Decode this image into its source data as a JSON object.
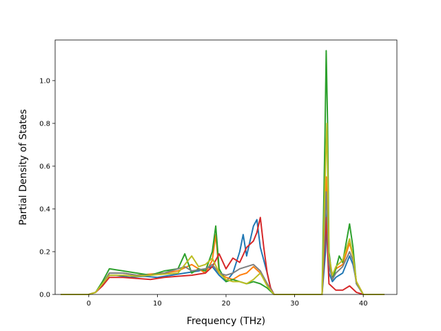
{
  "chart_data": {
    "type": "line",
    "title": "",
    "xlabel": "Frequency (THz)",
    "ylabel": "Partial Density of States",
    "xlim": [
      -4.9,
      44.9
    ],
    "ylim": [
      0,
      1.19
    ],
    "xticks": [
      0,
      10,
      20,
      30,
      40
    ],
    "yticks": [
      0.0,
      0.2,
      0.4,
      0.6,
      0.8,
      1.0
    ],
    "xtick_labels": [
      "0",
      "10",
      "20",
      "30",
      "40"
    ],
    "ytick_labels": [
      "0.0",
      "0.2",
      "0.4",
      "0.6",
      "0.8",
      "1.0"
    ],
    "grid": false,
    "legend": "none",
    "series": [
      {
        "color": "#1f77b4",
        "points": [
          [
            -4,
            0
          ],
          [
            0,
            0
          ],
          [
            1,
            0.01
          ],
          [
            2,
            0.05
          ],
          [
            3,
            0.09
          ],
          [
            4,
            0.09
          ],
          [
            6,
            0.08
          ],
          [
            8,
            0.085
          ],
          [
            10,
            0.08
          ],
          [
            12,
            0.09
          ],
          [
            14,
            0.1
          ],
          [
            16,
            0.11
          ],
          [
            18,
            0.13
          ],
          [
            19,
            0.09
          ],
          [
            20,
            0.06
          ],
          [
            21,
            0.1
          ],
          [
            22,
            0.2
          ],
          [
            22.5,
            0.28
          ],
          [
            23,
            0.18
          ],
          [
            24,
            0.32
          ],
          [
            24.5,
            0.35
          ],
          [
            25,
            0.22
          ],
          [
            26,
            0.1
          ],
          [
            26.5,
            0.03
          ],
          [
            27,
            0
          ],
          [
            34,
            0
          ],
          [
            34.5,
            0.2
          ],
          [
            34.7,
            0.4
          ],
          [
            35,
            0.1
          ],
          [
            35.5,
            0.06
          ],
          [
            36,
            0.08
          ],
          [
            37,
            0.1
          ],
          [
            38,
            0.18
          ],
          [
            38.5,
            0.14
          ],
          [
            39,
            0.06
          ],
          [
            40,
            0
          ],
          [
            43,
            0
          ]
        ]
      },
      {
        "color": "#ff7f0e",
        "points": [
          [
            -4,
            0
          ],
          [
            0,
            0
          ],
          [
            1,
            0.01
          ],
          [
            2,
            0.05
          ],
          [
            3,
            0.1
          ],
          [
            5,
            0.1
          ],
          [
            7,
            0.09
          ],
          [
            9,
            0.095
          ],
          [
            11,
            0.1
          ],
          [
            13,
            0.11
          ],
          [
            15,
            0.14
          ],
          [
            16,
            0.12
          ],
          [
            17,
            0.1
          ],
          [
            18,
            0.16
          ],
          [
            18.5,
            0.28
          ],
          [
            19,
            0.1
          ],
          [
            20,
            0.08
          ],
          [
            21,
            0.07
          ],
          [
            22,
            0.09
          ],
          [
            23,
            0.1
          ],
          [
            24,
            0.13
          ],
          [
            25,
            0.1
          ],
          [
            26,
            0.05
          ],
          [
            27,
            0
          ],
          [
            34,
            0
          ],
          [
            34.6,
            0.55
          ],
          [
            35,
            0.15
          ],
          [
            35.5,
            0.08
          ],
          [
            36,
            0.12
          ],
          [
            37,
            0.14
          ],
          [
            38,
            0.24
          ],
          [
            38.5,
            0.18
          ],
          [
            39,
            0.06
          ],
          [
            40,
            0
          ],
          [
            43,
            0
          ]
        ]
      },
      {
        "color": "#2ca02c",
        "points": [
          [
            -4,
            0
          ],
          [
            0,
            0
          ],
          [
            1,
            0.01
          ],
          [
            2,
            0.06
          ],
          [
            3,
            0.12
          ],
          [
            5,
            0.11
          ],
          [
            7,
            0.1
          ],
          [
            9,
            0.09
          ],
          [
            11,
            0.11
          ],
          [
            13,
            0.12
          ],
          [
            14,
            0.19
          ],
          [
            15,
            0.1
          ],
          [
            16,
            0.12
          ],
          [
            17,
            0.11
          ],
          [
            18,
            0.2
          ],
          [
            18.5,
            0.32
          ],
          [
            19,
            0.12
          ],
          [
            20,
            0.06
          ],
          [
            21,
            0.07
          ],
          [
            22,
            0.06
          ],
          [
            23,
            0.05
          ],
          [
            24,
            0.06
          ],
          [
            25,
            0.05
          ],
          [
            26,
            0.03
          ],
          [
            27,
            0
          ],
          [
            34,
            0
          ],
          [
            34.4,
            0.7
          ],
          [
            34.6,
            1.14
          ],
          [
            34.8,
            0.8
          ],
          [
            35,
            0.2
          ],
          [
            35.5,
            0.07
          ],
          [
            36,
            0.12
          ],
          [
            36.5,
            0.18
          ],
          [
            37,
            0.15
          ],
          [
            38,
            0.33
          ],
          [
            38.5,
            0.22
          ],
          [
            39,
            0.05
          ],
          [
            40,
            0
          ],
          [
            43,
            0
          ]
        ]
      },
      {
        "color": "#d62728",
        "points": [
          [
            -4,
            0
          ],
          [
            0,
            0
          ],
          [
            1,
            0.01
          ],
          [
            2,
            0.04
          ],
          [
            3,
            0.08
          ],
          [
            5,
            0.08
          ],
          [
            7,
            0.075
          ],
          [
            9,
            0.07
          ],
          [
            11,
            0.08
          ],
          [
            13,
            0.085
          ],
          [
            15,
            0.09
          ],
          [
            17,
            0.1
          ],
          [
            18,
            0.13
          ],
          [
            19,
            0.19
          ],
          [
            20,
            0.12
          ],
          [
            21,
            0.17
          ],
          [
            22,
            0.15
          ],
          [
            23,
            0.22
          ],
          [
            24,
            0.25
          ],
          [
            24.5,
            0.29
          ],
          [
            25,
            0.36
          ],
          [
            25.5,
            0.22
          ],
          [
            26,
            0.1
          ],
          [
            26.5,
            0.03
          ],
          [
            27,
            0
          ],
          [
            34,
            0
          ],
          [
            34.6,
            0.36
          ],
          [
            35,
            0.05
          ],
          [
            36,
            0.02
          ],
          [
            37,
            0.02
          ],
          [
            38,
            0.04
          ],
          [
            39,
            0.01
          ],
          [
            40,
            0
          ],
          [
            43,
            0
          ]
        ]
      },
      {
        "color": "#7f7f7f",
        "points": [
          [
            -4,
            0
          ],
          [
            0,
            0
          ],
          [
            1,
            0.01
          ],
          [
            2,
            0.05
          ],
          [
            3,
            0.1
          ],
          [
            5,
            0.1
          ],
          [
            7,
            0.09
          ],
          [
            9,
            0.09
          ],
          [
            11,
            0.1
          ],
          [
            13,
            0.12
          ],
          [
            14,
            0.13
          ],
          [
            15,
            0.11
          ],
          [
            17,
            0.12
          ],
          [
            18,
            0.14
          ],
          [
            19,
            0.1
          ],
          [
            20,
            0.09
          ],
          [
            21,
            0.1
          ],
          [
            22,
            0.12
          ],
          [
            23,
            0.13
          ],
          [
            24,
            0.14
          ],
          [
            25,
            0.11
          ],
          [
            26,
            0.05
          ],
          [
            27,
            0
          ],
          [
            34,
            0
          ],
          [
            34.6,
            0.48
          ],
          [
            35,
            0.14
          ],
          [
            35.5,
            0.07
          ],
          [
            36,
            0.1
          ],
          [
            37,
            0.13
          ],
          [
            38,
            0.2
          ],
          [
            38.5,
            0.16
          ],
          [
            39,
            0.05
          ],
          [
            40,
            0
          ],
          [
            43,
            0
          ]
        ]
      },
      {
        "color": "#bcbd22",
        "points": [
          [
            -4,
            0
          ],
          [
            0,
            0
          ],
          [
            1,
            0.01
          ],
          [
            2,
            0.05
          ],
          [
            3,
            0.09
          ],
          [
            5,
            0.09
          ],
          [
            7,
            0.085
          ],
          [
            9,
            0.09
          ],
          [
            11,
            0.095
          ],
          [
            13,
            0.1
          ],
          [
            15,
            0.18
          ],
          [
            16,
            0.13
          ],
          [
            17,
            0.14
          ],
          [
            18,
            0.17
          ],
          [
            19,
            0.1
          ],
          [
            20,
            0.07
          ],
          [
            21,
            0.06
          ],
          [
            22,
            0.06
          ],
          [
            23,
            0.05
          ],
          [
            24,
            0.07
          ],
          [
            25,
            0.1
          ],
          [
            26,
            0.04
          ],
          [
            27,
            0
          ],
          [
            34,
            0
          ],
          [
            34.5,
            0.6
          ],
          [
            34.7,
            0.8
          ],
          [
            35,
            0.18
          ],
          [
            35.5,
            0.09
          ],
          [
            36,
            0.13
          ],
          [
            37,
            0.16
          ],
          [
            38,
            0.26
          ],
          [
            38.5,
            0.18
          ],
          [
            39,
            0.06
          ],
          [
            40,
            0
          ],
          [
            43,
            0
          ]
        ]
      }
    ]
  }
}
